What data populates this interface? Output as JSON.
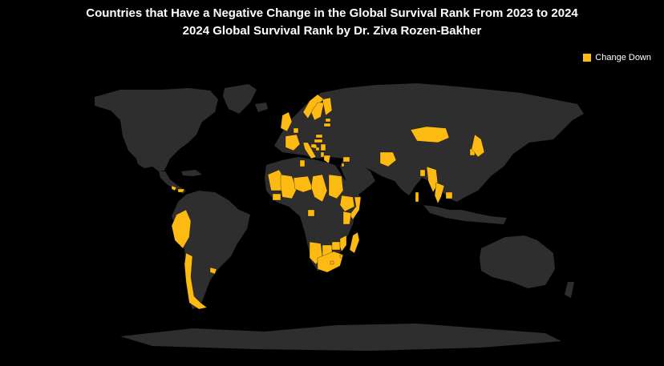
{
  "header": {
    "title": "Countries that Have a Negative Change in the Global Survival Rank From 2023 to 2024",
    "subtitle": "2024 Global Survival Rank by Dr. Ziva Rozen-Bakher"
  },
  "legend": {
    "label": "Change Down",
    "color": "#FDBA12"
  },
  "colors": {
    "land": "#2E2E2E",
    "highlight": "#FDBA12",
    "background": "#000000"
  },
  "map": {
    "projection": "equirectangular",
    "highlighted_countries": [
      "Peru",
      "Chile",
      "Uruguay",
      "Costa Rica",
      "Panama",
      "Mauritania",
      "Mali",
      "Niger",
      "Chad",
      "Sudan",
      "Ethiopia",
      "Somalia",
      "Kenya",
      "Guinea",
      "Gabon",
      "Madagascar",
      "Namibia",
      "Botswana",
      "Zimbabwe",
      "South Africa",
      "Lesotho",
      "Eswatini",
      "Mozambique",
      "Norway",
      "Sweden",
      "Finland",
      "Estonia",
      "Latvia",
      "United Kingdom",
      "Netherlands",
      "France",
      "Italy",
      "Slovakia",
      "Hungary",
      "Croatia",
      "Bosnia and Herzegovina",
      "Serbia",
      "Albania",
      "Greece",
      "Tunisia",
      "Syria",
      "Lebanon",
      "Afghanistan",
      "Mongolia",
      "Bangladesh",
      "Myanmar",
      "Thailand",
      "Cambodia",
      "Sri Lanka",
      "South Korea",
      "Japan"
    ]
  }
}
